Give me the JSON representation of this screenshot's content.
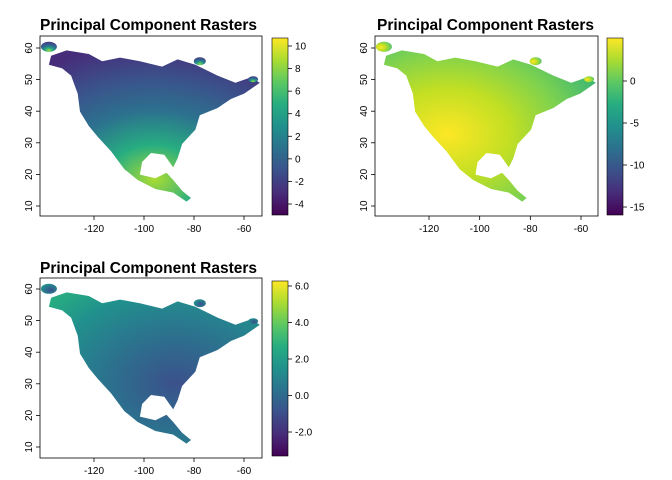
{
  "figure": {
    "panels": [
      {
        "id": "pc1",
        "title": "Principal Component Rasters",
        "xticks": [
          "-120",
          "-100",
          "-80",
          "-60"
        ],
        "yticks": [
          "60",
          "50",
          "40",
          "30",
          "20",
          "10"
        ],
        "legend_ticks": [
          "10",
          "8",
          "6",
          "4",
          "2",
          "0",
          "-2",
          "-4"
        ],
        "value_range": [
          -5,
          10.5
        ],
        "color_pattern": "low north, high south / central america"
      },
      {
        "id": "pc2",
        "title": "Principal Component Rasters",
        "xticks": [
          "-120",
          "-100",
          "-80",
          "-60"
        ],
        "yticks": [
          "60",
          "50",
          "40",
          "30",
          "20",
          "10"
        ],
        "legend_ticks": [
          "0",
          "-5",
          "-10",
          "-15"
        ],
        "value_range": [
          -16,
          5
        ],
        "color_pattern": "high southwest, mid elsewhere"
      },
      {
        "id": "pc3",
        "title": "Principal Component Rasters",
        "xticks": [
          "-120",
          "-100",
          "-80",
          "-60"
        ],
        "yticks": [
          "60",
          "50",
          "40",
          "30",
          "20",
          "10"
        ],
        "legend_ticks": [
          "6.0",
          "4.0",
          "2.0",
          "0.0",
          "-2.0"
        ],
        "value_range": [
          -3.5,
          6.2
        ],
        "color_pattern": "low southeast, mid west and north"
      }
    ],
    "colormap": [
      "#440154",
      "#472c7a",
      "#3b518b",
      "#2c718e",
      "#21908d",
      "#27ad81",
      "#5cc863",
      "#aadc32",
      "#fde725"
    ]
  }
}
